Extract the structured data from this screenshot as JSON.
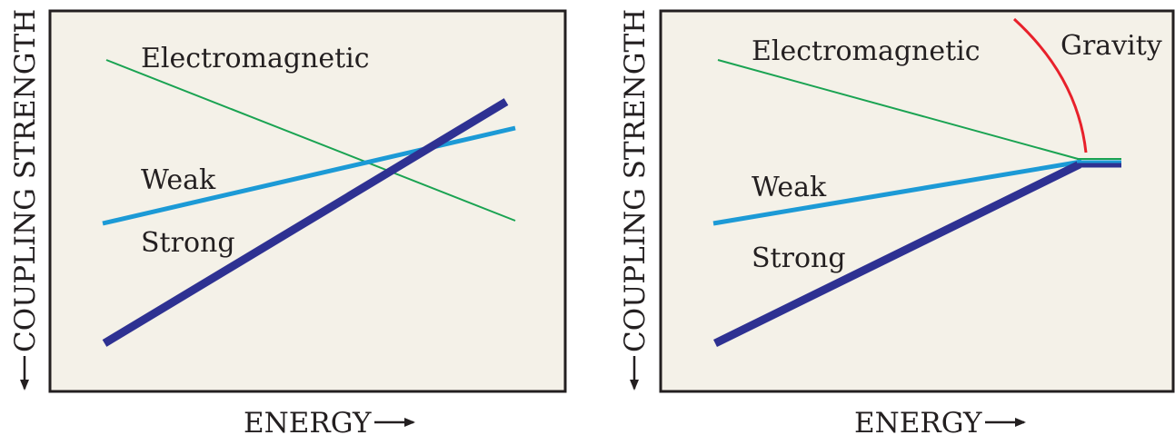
{
  "panels": [
    {
      "id": "left",
      "y_axis_label": "COUPLING STRENGTH",
      "x_axis_label": "ENERGY",
      "labels": {
        "electromagnetic": "Electromagnetic",
        "weak": "Weak",
        "strong": "Strong"
      }
    },
    {
      "id": "right",
      "y_axis_label": "COUPLING STRENGTH",
      "x_axis_label": "ENERGY",
      "labels": {
        "electromagnetic": "Electromagnetic",
        "weak": "Weak",
        "strong": "Strong",
        "gravity": "Gravity"
      }
    }
  ],
  "colors": {
    "panel_bg": "#f4f1e8",
    "frame": "#231f20",
    "electromagnetic": "#1aa352",
    "weak": "#1c9ad6",
    "strong": "#2e3192",
    "gravity": "#e8212b"
  }
}
